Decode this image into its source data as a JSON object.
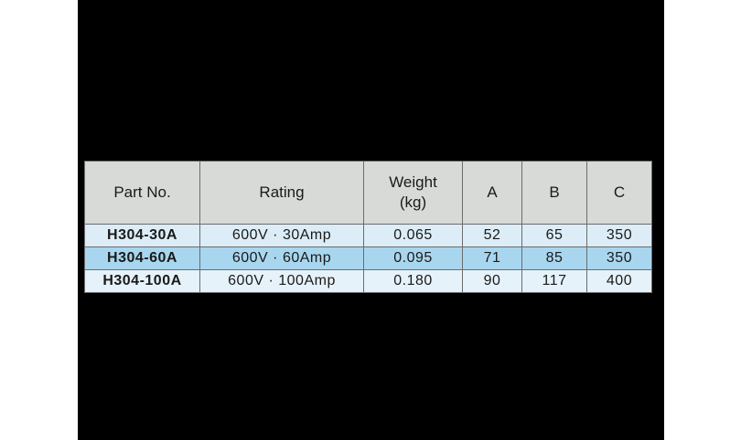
{
  "table": {
    "header": [
      "Part No.",
      "Rating",
      "Weight\n(kg)",
      "A",
      "B",
      "C"
    ],
    "rows": [
      [
        "H304-30A",
        "600V · 30Amp",
        "0.065",
        "52",
        "65",
        "350"
      ],
      [
        "H304-60A",
        "600V · 60Amp",
        "0.095",
        "71",
        "85",
        "350"
      ],
      [
        "H304-100A",
        "600V · 100Amp",
        "0.180",
        "90",
        "117",
        "400"
      ]
    ]
  }
}
